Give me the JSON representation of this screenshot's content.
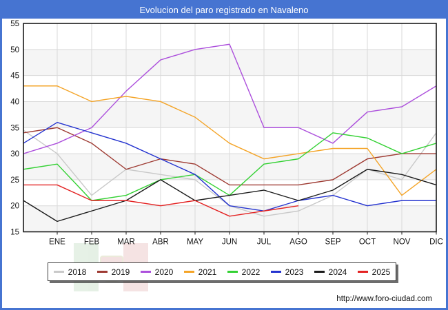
{
  "title": "Evolucion del paro registrado en Navaleno",
  "footer_link": "http://www.foro-ciudad.com",
  "colors": {
    "frame_blue": "#4674d1",
    "grid_line": "#d9d9d9",
    "band_gray": "#f5f5f5",
    "axis_black": "#1a1a1a",
    "text_black": "#111111"
  },
  "chart_data": {
    "type": "line",
    "title": "Evolucion del paro registrado en Navaleno",
    "xlabel": "",
    "ylabel": "",
    "ylim": [
      15,
      55
    ],
    "ytick_step": 5,
    "yticks": [
      15,
      20,
      25,
      30,
      35,
      40,
      45,
      50,
      55
    ],
    "grid": true,
    "legend_position": "bottom",
    "months": [
      "ENE",
      "FEB",
      "MAR",
      "ABR",
      "MAY",
      "JUN",
      "JUL",
      "AGO",
      "SEP",
      "OCT",
      "NOV",
      "DIC"
    ],
    "note": "Each series has a leading point drawn on the left axis (value before ENE); 2025 ends at AGO.",
    "series": [
      {
        "name": "2018",
        "color": "#c9c9c9",
        "start": 34.5,
        "values": [
          30,
          22,
          27,
          26,
          25,
          20,
          18,
          19,
          22,
          27,
          25,
          34
        ]
      },
      {
        "name": "2019",
        "color": "#9e3a32",
        "start": 34,
        "values": [
          35,
          32,
          27,
          29,
          28,
          24,
          24,
          24,
          25,
          29,
          30,
          30
        ]
      },
      {
        "name": "2020",
        "color": "#ac4fdc",
        "start": 30,
        "values": [
          32,
          35,
          42,
          48,
          50,
          51,
          35,
          35,
          32,
          38,
          39,
          43
        ]
      },
      {
        "name": "2021",
        "color": "#f4a427",
        "start": 43,
        "values": [
          43,
          40,
          41,
          40,
          37,
          32,
          29,
          30,
          31,
          31,
          22,
          27
        ]
      },
      {
        "name": "2022",
        "color": "#33d133",
        "start": 27,
        "values": [
          28,
          21,
          22,
          25,
          26,
          22,
          28,
          29,
          34,
          33,
          30,
          32
        ]
      },
      {
        "name": "2023",
        "color": "#2433cf",
        "start": 32,
        "values": [
          36,
          34,
          32,
          29,
          26,
          20,
          19,
          21,
          22,
          20,
          21,
          21
        ]
      },
      {
        "name": "2024",
        "color": "#1a1a1a",
        "start": 21,
        "values": [
          17,
          19,
          21,
          25,
          21,
          22,
          23,
          21,
          23,
          27,
          26,
          24
        ]
      },
      {
        "name": "2025",
        "color": "#e32222",
        "start": 24,
        "values": [
          24,
          21,
          21,
          20,
          21,
          18,
          19,
          20,
          null,
          null,
          null,
          null
        ]
      }
    ]
  }
}
